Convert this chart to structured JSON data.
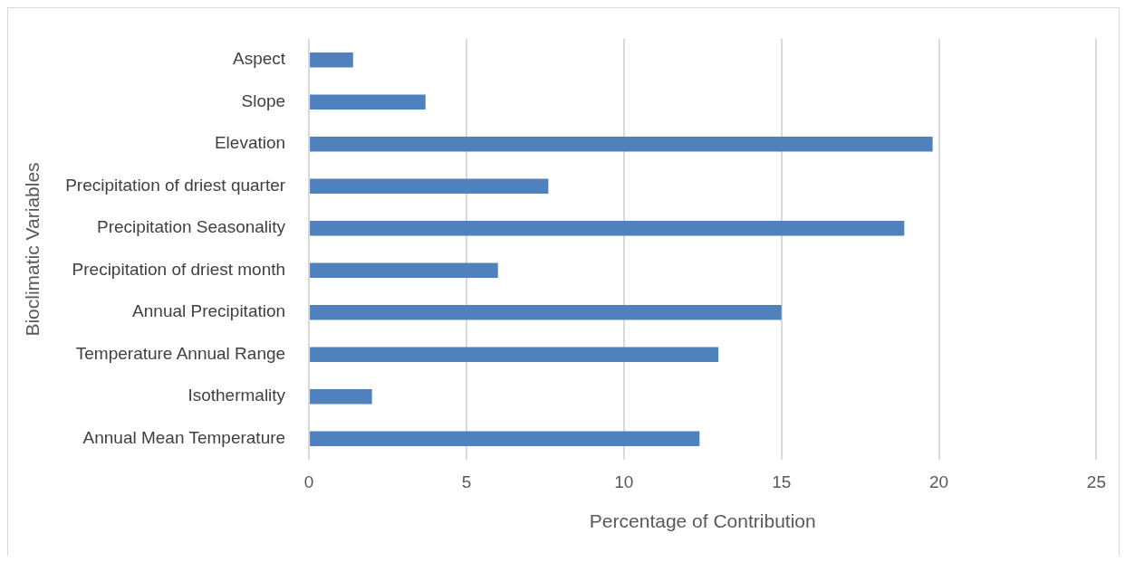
{
  "chart_data": {
    "type": "bar",
    "orientation": "horizontal",
    "xlabel": "Percentage of Contribution",
    "ylabel": "Bioclimatic Variables",
    "categories": [
      "Aspect",
      "Slope",
      "Elevation",
      "Precipitation of driest quarter",
      "Precipitation Seasonality",
      "Precipitation of driest month",
      "Annual Precipitation",
      "Temperature Annual Range",
      "Isothermality",
      "Annual Mean Temperature"
    ],
    "values": [
      1.4,
      3.7,
      19.8,
      7.6,
      18.9,
      6.0,
      15.0,
      13.0,
      2.0,
      12.4
    ],
    "color": "#4f81bd",
    "xlim": [
      0,
      25
    ],
    "xticks": [
      0,
      5,
      10,
      15,
      20,
      25
    ],
    "grid": "x",
    "legend": false
  }
}
